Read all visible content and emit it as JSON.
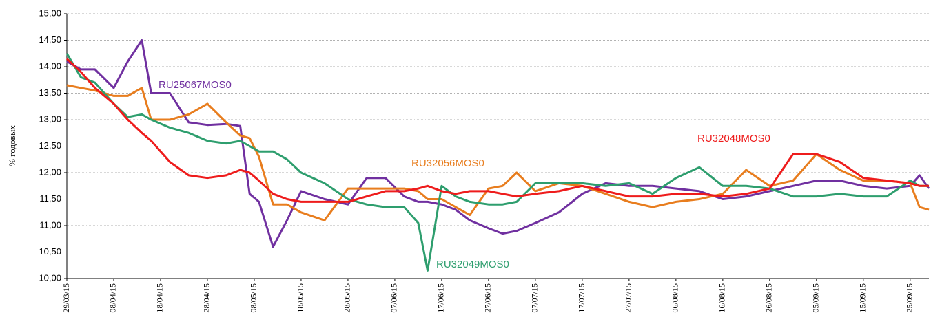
{
  "chart_data": {
    "type": "line",
    "y_label": "% годовых",
    "x": [
      "29/03/15",
      "01/04/15",
      "04/04/15",
      "08/04/15",
      "11/04/15",
      "14/04/15",
      "16/04/15",
      "20/04/15",
      "24/04/15",
      "28/04/15",
      "02/05/15",
      "05/05/15",
      "07/05/15",
      "09/05/15",
      "12/05/15",
      "15/05/15",
      "18/05/15",
      "23/05/15",
      "28/05/15",
      "01/06/15",
      "05/06/15",
      "09/06/15",
      "12/06/15",
      "14/06/15",
      "17/06/15",
      "20/06/15",
      "23/06/15",
      "27/06/15",
      "30/06/15",
      "03/07/15",
      "07/07/15",
      "12/07/15",
      "17/07/15",
      "22/07/15",
      "27/07/15",
      "01/08/15",
      "06/08/15",
      "11/08/15",
      "16/08/15",
      "21/08/15",
      "26/08/15",
      "31/08/15",
      "05/09/15",
      "10/09/15",
      "15/09/15",
      "20/09/15",
      "25/09/15",
      "27/09/15",
      "29/09/15"
    ],
    "series": [
      {
        "name": "RU25067MOS0",
        "color": "#7030a0",
        "values": [
          14.1,
          13.95,
          13.95,
          13.6,
          14.1,
          14.5,
          13.5,
          13.5,
          12.95,
          12.9,
          12.92,
          12.88,
          11.6,
          11.45,
          10.6,
          11.1,
          11.65,
          11.5,
          11.4,
          11.9,
          11.9,
          11.55,
          11.45,
          11.45,
          11.4,
          11.3,
          11.1,
          10.95,
          10.85,
          10.9,
          11.05,
          11.25,
          11.6,
          11.8,
          11.75,
          11.75,
          11.7,
          11.65,
          11.5,
          11.55,
          11.65,
          11.75,
          11.85,
          11.85,
          11.75,
          11.7,
          11.75,
          11.95,
          11.7
        ]
      },
      {
        "name": "RU32056MOS0",
        "color": "#e87d1e",
        "values": [
          13.65,
          13.6,
          13.55,
          13.45,
          13.45,
          13.6,
          13.0,
          13.0,
          13.1,
          13.3,
          12.95,
          12.7,
          12.65,
          12.3,
          11.4,
          11.4,
          11.25,
          11.1,
          11.7,
          11.7,
          11.7,
          11.7,
          11.65,
          11.5,
          11.5,
          11.35,
          11.2,
          11.7,
          11.75,
          12.0,
          11.65,
          11.8,
          11.75,
          11.6,
          11.45,
          11.35,
          11.45,
          11.5,
          11.6,
          12.05,
          11.75,
          11.85,
          12.35,
          12.05,
          11.85,
          11.85,
          11.8,
          11.35,
          11.3
        ]
      },
      {
        "name": "RU32049MOS0",
        "color": "#2e9e6e",
        "values": [
          14.25,
          13.8,
          13.7,
          13.3,
          13.05,
          13.1,
          13.0,
          12.85,
          12.75,
          12.6,
          12.55,
          12.6,
          12.5,
          12.4,
          12.4,
          12.25,
          12.0,
          11.8,
          11.5,
          11.4,
          11.35,
          11.35,
          11.05,
          10.15,
          11.75,
          11.55,
          11.45,
          11.4,
          11.4,
          11.45,
          11.8,
          11.8,
          11.8,
          11.75,
          11.8,
          11.6,
          11.9,
          12.1,
          11.75,
          11.75,
          11.7,
          11.55,
          11.55,
          11.6,
          11.55,
          11.55,
          11.85,
          11.75,
          11.75
        ]
      },
      {
        "name": "RU32048MOS0",
        "color": "#ee1c1c",
        "values": [
          14.15,
          13.9,
          13.6,
          13.3,
          13.0,
          12.75,
          12.6,
          12.2,
          11.95,
          11.9,
          11.95,
          12.05,
          12.0,
          11.85,
          11.6,
          11.5,
          11.45,
          11.45,
          11.45,
          11.55,
          11.65,
          11.65,
          11.7,
          11.75,
          11.65,
          11.6,
          11.65,
          11.65,
          11.6,
          11.55,
          11.6,
          11.65,
          11.75,
          11.65,
          11.55,
          11.55,
          11.6,
          11.6,
          11.55,
          11.6,
          11.7,
          12.35,
          12.35,
          12.2,
          11.9,
          11.85,
          11.8,
          11.75,
          11.75
        ]
      }
    ],
    "xlim": [
      "29/03/15",
      "29/09/15"
    ],
    "xticks": [
      "29/03/15",
      "08/04/15",
      "18/04/15",
      "28/04/15",
      "08/05/15",
      "18/05/15",
      "28/05/15",
      "07/06/15",
      "17/06/15",
      "27/06/15",
      "07/07/15",
      "17/07/15",
      "27/07/15",
      "06/08/15",
      "16/08/15",
      "26/08/15",
      "05/09/15",
      "15/09/15",
      "25/09/15"
    ],
    "ylim": [
      10,
      15
    ],
    "yticks": [
      {
        "value": 10,
        "label": "10,00"
      },
      {
        "value": 10.5,
        "label": "10,50"
      },
      {
        "value": 11,
        "label": "11,00"
      },
      {
        "value": 11.5,
        "label": "11,50"
      },
      {
        "value": 12,
        "label": "12,00"
      },
      {
        "value": 12.5,
        "label": "12,50"
      },
      {
        "value": 13,
        "label": "13,00"
      },
      {
        "value": 13.5,
        "label": "13,50"
      },
      {
        "value": 14,
        "label": "14,00"
      },
      {
        "value": 14.5,
        "label": "14,50"
      },
      {
        "value": 15,
        "label": "15,00"
      }
    ],
    "grid": true
  }
}
